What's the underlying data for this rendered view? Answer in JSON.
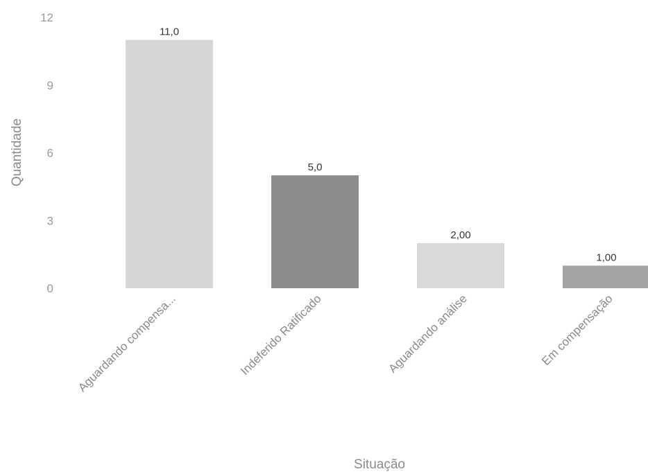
{
  "chart_data": {
    "type": "bar",
    "title": "",
    "xlabel": "Situação",
    "ylabel": "Quantidade",
    "ylim": [
      0,
      12
    ],
    "yticks": [
      "0",
      "3",
      "6",
      "9",
      "12"
    ],
    "ytick_values": [
      0,
      3,
      6,
      9,
      12
    ],
    "categories": [
      "Aguardando compensa...",
      "Indeferido Ratificado",
      "Aguardando análise",
      "Em compensação"
    ],
    "values": [
      11,
      5,
      2,
      1
    ],
    "value_labels": [
      "11,0",
      "5,0",
      "2,00",
      "1,00"
    ],
    "bar_colors": [
      "#d6d6d6",
      "#8c8c8c",
      "#d9d9d9",
      "#a3a3a3"
    ],
    "grid": false,
    "legend": "none"
  }
}
